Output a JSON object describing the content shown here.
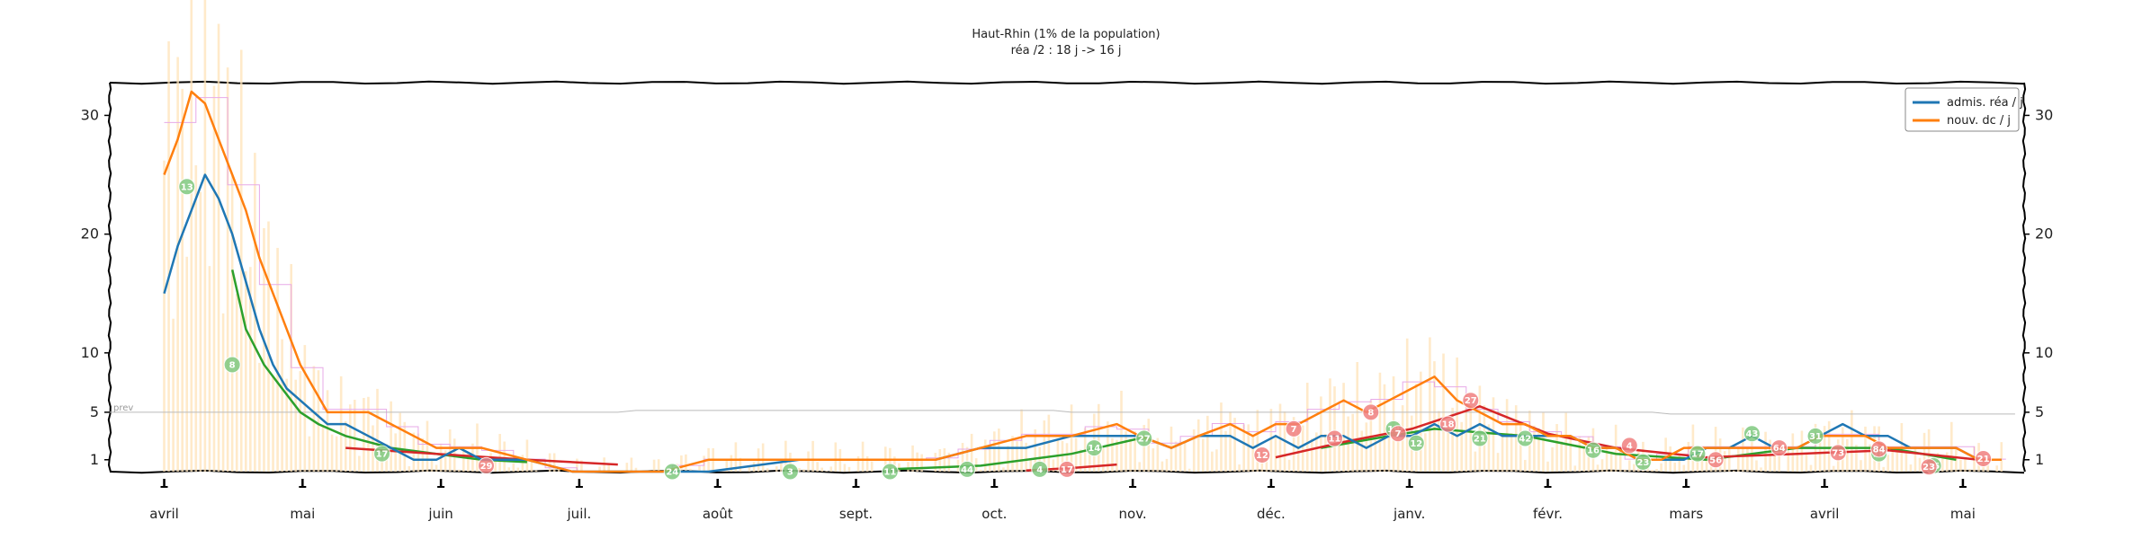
{
  "chart_data": {
    "type": "line",
    "title": "Haut-Rhin (1% de la population)",
    "subtitle": "réa /2 : 18 j -> 16 j",
    "xlabel": "",
    "ylabel": "",
    "x_categories": [
      "avril",
      "mai",
      "juin",
      "juil.",
      "août",
      "sept.",
      "oct.",
      "nov.",
      "déc.",
      "janv.",
      "févr.",
      "mars",
      "avril",
      "mai"
    ],
    "x_start_day": -12,
    "x_end_day": 410,
    "yticks": [
      1,
      5,
      10,
      20,
      30
    ],
    "ylim": [
      0,
      32
    ],
    "legend_position": "top-right",
    "prev_label": "prev",
    "series": [
      {
        "name": "admis. réa / j",
        "color": "#1f77b4",
        "x": [
          0,
          3,
          6,
          9,
          12,
          15,
          18,
          21,
          24,
          27,
          30,
          33,
          36,
          40,
          45,
          50,
          55,
          60,
          65,
          70,
          80,
          90,
          100,
          110,
          120,
          140,
          160,
          170,
          180,
          190,
          200,
          210,
          215,
          222,
          228,
          235,
          240,
          245,
          250,
          255,
          260,
          265,
          270,
          275,
          280,
          285,
          290,
          295,
          300,
          305,
          310,
          315,
          320,
          325,
          330,
          335,
          340,
          345,
          350,
          355,
          360,
          365,
          370,
          375,
          380,
          385,
          390,
          395,
          400,
          405
        ],
        "y": [
          15,
          19,
          22,
          25,
          23,
          20,
          16,
          12,
          9,
          7,
          6,
          5,
          4,
          4,
          3,
          2,
          1,
          1,
          2,
          1,
          1,
          0,
          0,
          0,
          0,
          1,
          1,
          1,
          2,
          2,
          3,
          3,
          3,
          2,
          3,
          3,
          2,
          3,
          2,
          3,
          3,
          2,
          3,
          3,
          4,
          3,
          4,
          3,
          3,
          3,
          3,
          2,
          2,
          1,
          1,
          1,
          2,
          2,
          3,
          2,
          2,
          3,
          4,
          3,
          3,
          2,
          2,
          2,
          1,
          1
        ]
      },
      {
        "name": "nouv. dc / j",
        "color": "#ff7f0e",
        "x": [
          0,
          3,
          6,
          9,
          12,
          15,
          18,
          21,
          24,
          27,
          30,
          33,
          36,
          40,
          45,
          50,
          55,
          60,
          65,
          70,
          80,
          90,
          100,
          110,
          120,
          140,
          160,
          170,
          180,
          190,
          200,
          210,
          215,
          222,
          228,
          235,
          240,
          245,
          250,
          255,
          260,
          265,
          270,
          275,
          280,
          285,
          290,
          295,
          300,
          305,
          310,
          315,
          320,
          325,
          330,
          335,
          340,
          345,
          350,
          355,
          360,
          365,
          370,
          375,
          380,
          385,
          390,
          395,
          400,
          405
        ],
        "y": [
          25,
          28,
          32,
          31,
          28,
          25,
          22,
          18,
          15,
          12,
          9,
          7,
          5,
          5,
          5,
          4,
          3,
          2,
          2,
          2,
          1,
          0,
          0,
          0,
          1,
          1,
          1,
          1,
          2,
          3,
          3,
          4,
          3,
          2,
          3,
          4,
          3,
          4,
          4,
          5,
          6,
          5,
          6,
          7,
          8,
          6,
          5,
          4,
          4,
          3,
          3,
          2,
          2,
          1,
          1,
          2,
          2,
          2,
          2,
          2,
          2,
          3,
          3,
          3,
          2,
          2,
          2,
          2,
          1,
          1
        ]
      }
    ],
    "bars_deaths_daily_description": "pale orange daily bars",
    "annotations_green": [
      {
        "label": "13",
        "x": 5,
        "y": 24
      },
      {
        "label": "8",
        "x": 15,
        "y": 9
      },
      {
        "label": "17",
        "x": 48,
        "y": 1.5
      },
      {
        "label": "24",
        "x": 112,
        "y": 0
      },
      {
        "label": "3",
        "x": 138,
        "y": 0
      },
      {
        "label": "11",
        "x": 160,
        "y": 0
      },
      {
        "label": "44",
        "x": 177,
        "y": 0.2
      },
      {
        "label": "4",
        "x": 193,
        "y": 0.2
      },
      {
        "label": "14",
        "x": 205,
        "y": 2
      },
      {
        "label": "27",
        "x": 216,
        "y": 2.8
      },
      {
        "label": "19",
        "x": 271,
        "y": 3.6
      },
      {
        "label": "12",
        "x": 276,
        "y": 2.4
      },
      {
        "label": "21",
        "x": 290,
        "y": 2.8
      },
      {
        "label": "42",
        "x": 300,
        "y": 2.8
      },
      {
        "label": "16",
        "x": 315,
        "y": 1.8
      },
      {
        "label": "23",
        "x": 326,
        "y": 0.8
      },
      {
        "label": "17",
        "x": 338,
        "y": 1.5
      },
      {
        "label": "43",
        "x": 350,
        "y": 3.2
      },
      {
        "label": "31",
        "x": 364,
        "y": 3.0
      },
      {
        "label": "18",
        "x": 378,
        "y": 1.5
      },
      {
        "label": "16",
        "x": 390,
        "y": 0.5
      }
    ],
    "annotations_red": [
      {
        "label": "29",
        "x": 71,
        "y": 0.5
      },
      {
        "label": "17",
        "x": 199,
        "y": 0.2
      },
      {
        "label": "12",
        "x": 242,
        "y": 1.4
      },
      {
        "label": "7",
        "x": 249,
        "y": 3.6
      },
      {
        "label": "11",
        "x": 258,
        "y": 2.8
      },
      {
        "label": "8",
        "x": 266,
        "y": 5
      },
      {
        "label": "7",
        "x": 272,
        "y": 3.2
      },
      {
        "label": "18",
        "x": 283,
        "y": 4
      },
      {
        "label": "27",
        "x": 288,
        "y": 6
      },
      {
        "label": "4",
        "x": 323,
        "y": 2.2
      },
      {
        "label": "56",
        "x": 342,
        "y": 1
      },
      {
        "label": "64",
        "x": 356,
        "y": 2
      },
      {
        "label": "73",
        "x": 369,
        "y": 1.6
      },
      {
        "label": "84",
        "x": 378,
        "y": 1.9
      },
      {
        "label": "23",
        "x": 389,
        "y": 0.4
      },
      {
        "label": "21",
        "x": 401,
        "y": 1.1
      }
    ],
    "trend_green": [
      {
        "x": [
          15,
          18,
          22,
          26,
          30,
          34,
          40,
          50,
          60,
          70,
          80
        ],
        "y": [
          17,
          12,
          9,
          7,
          5,
          4,
          3,
          2,
          1.5,
          1,
          0.8
        ]
      },
      {
        "x": [
          160,
          180,
          200,
          215
        ],
        "y": [
          0.2,
          0.5,
          1.5,
          2.8
        ]
      },
      {
        "x": [
          255,
          270,
          280,
          300,
          320,
          340,
          360,
          380,
          395
        ],
        "y": [
          2,
          3,
          3.6,
          3,
          1.5,
          1,
          2,
          2,
          1
        ]
      }
    ],
    "trend_red": [
      {
        "x": [
          40,
          60,
          80,
          100
        ],
        "y": [
          2,
          1.5,
          1,
          0.6
        ]
      },
      {
        "x": [
          190,
          200,
          210
        ],
        "y": [
          0.1,
          0.3,
          0.6
        ]
      },
      {
        "x": [
          245,
          260,
          275,
          290,
          305,
          320,
          340,
          360,
          380,
          400
        ],
        "y": [
          1.2,
          2.5,
          3.6,
          5.5,
          3.2,
          2,
          1.2,
          1.5,
          1.8,
          1
        ]
      }
    ]
  }
}
